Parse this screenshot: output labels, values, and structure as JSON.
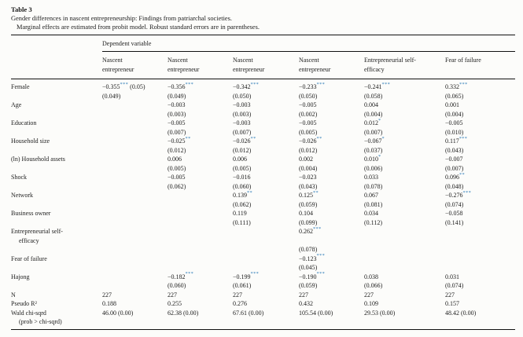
{
  "title": "Table 3",
  "caption_line1": "Gender differences in nascent entrepreneurship: Findings from patriarchal societies.",
  "caption_line2": "Marginal effects are estimated from probit model. Robust standard errors are in parentheses.",
  "colors": {
    "significance_star": "#2e7cb8",
    "rule": "#111111",
    "text": "#1c1c1c",
    "background": "#fcfcfa"
  },
  "table": {
    "dependent_variable_label": "Dependent variable",
    "column_headers": [
      [
        "Nascent",
        "entrepreneur"
      ],
      [
        "Nascent",
        "entrepreneur"
      ],
      [
        "Nascent",
        "entrepreneur"
      ],
      [
        "Nascent",
        "entrepreneur"
      ],
      [
        "Entrepreneurial self-",
        "efficacy"
      ],
      [
        "Fear of failure"
      ]
    ],
    "rows": [
      {
        "label": [
          "Female"
        ],
        "cells": [
          [
            "−0.355*** (0.05)",
            "(0.049)"
          ],
          [
            "−0.356***",
            "(0.049)"
          ],
          [
            "−0.342***",
            "(0.050)"
          ],
          [
            "−0.233***",
            "(0.050)"
          ],
          [
            "−0.241***",
            "(0.058)"
          ],
          [
            "0.332***",
            "(0.065)"
          ]
        ]
      },
      {
        "label": [
          "Age"
        ],
        "cells": [
          [],
          [
            "−0.003",
            "(0.003)"
          ],
          [
            "−0.003",
            "(0.003)"
          ],
          [
            "−0.005",
            "(0.002)"
          ],
          [
            "0.004",
            "(0.004)"
          ],
          [
            "0.001",
            "(0.004)"
          ]
        ]
      },
      {
        "label": [
          "Education"
        ],
        "cells": [
          [],
          [
            "−0.005",
            "(0.007)"
          ],
          [
            "−0.003",
            "(0.007)"
          ],
          [
            "−0.005",
            "(0.005)"
          ],
          [
            "0.012*",
            "(0.007)"
          ],
          [
            "−0.005",
            "(0.010)"
          ]
        ]
      },
      {
        "label": [
          "Household size"
        ],
        "cells": [
          [],
          [
            "−0.025**",
            "(0.012)"
          ],
          [
            "−0.026**",
            "(0.012)"
          ],
          [
            "−0.026**",
            "(0.012)"
          ],
          [
            "−0.067*",
            "(0.037)"
          ],
          [
            "0.117***",
            "(0.043)"
          ]
        ]
      },
      {
        "label": [
          "(ln) Household assets"
        ],
        "cells": [
          [],
          [
            "0.006",
            "(0.005)"
          ],
          [
            "0.006",
            "(0.005)"
          ],
          [
            "0.002",
            "(0.004)"
          ],
          [
            "0.010*",
            "(0.006)"
          ],
          [
            "−0.007",
            "(0.007)"
          ]
        ]
      },
      {
        "label": [
          "Shock"
        ],
        "cells": [
          [],
          [
            "−0.005",
            "(0.062)"
          ],
          [
            "−0.016",
            "(0.060)"
          ],
          [
            "−0.023",
            "(0.043)"
          ],
          [
            "0.033",
            "(0.078)"
          ],
          [
            "0.096**",
            "(0.048)"
          ]
        ]
      },
      {
        "label": [
          "Network"
        ],
        "cells": [
          [],
          [],
          [
            "0.139**",
            "(0.062)"
          ],
          [
            "0.125**",
            "(0.059)"
          ],
          [
            "0.067",
            "(0.081)"
          ],
          [
            "−0.276***",
            "(0.074)"
          ]
        ]
      },
      {
        "label": [
          "Business owner"
        ],
        "cells": [
          [],
          [],
          [
            "0.119",
            "(0.111)"
          ],
          [
            "0.104",
            "(0.099)"
          ],
          [
            "0.034",
            "(0.112)"
          ],
          [
            "−0.058",
            "(0.141)"
          ]
        ]
      },
      {
        "label": [
          "Entrepreneurial self-",
          "efficacy"
        ],
        "cells": [
          [],
          [],
          [],
          [
            "0.262***",
            "",
            "(0.078)"
          ],
          [],
          []
        ]
      },
      {
        "label": [
          "Fear of failure"
        ],
        "cells": [
          [],
          [],
          [],
          [
            "−0.123***",
            "(0.045)"
          ],
          [],
          []
        ]
      },
      {
        "label": [
          "Hajong"
        ],
        "cells": [
          [],
          [
            "−0.182***",
            "(0.060)"
          ],
          [
            "−0.199***",
            "(0.061)"
          ],
          [
            "−0.190***",
            "(0.059)"
          ],
          [
            "0.038",
            "(0.066)"
          ],
          [
            "0.031",
            "(0.074)"
          ]
        ]
      },
      {
        "label": [
          "N"
        ],
        "cells": [
          [
            "227"
          ],
          [
            "227"
          ],
          [
            "227"
          ],
          [
            "227"
          ],
          [
            "227"
          ],
          [
            "227"
          ]
        ]
      },
      {
        "label": [
          "Pseudo R²"
        ],
        "cells": [
          [
            "0.188"
          ],
          [
            "0.255"
          ],
          [
            "0.276"
          ],
          [
            "0.432"
          ],
          [
            "0.109"
          ],
          [
            "0.157"
          ]
        ]
      },
      {
        "label": [
          "Wald chi-sqrd",
          "(prob > chi-sqrd)"
        ],
        "cells": [
          [
            "46.00 (0.00)"
          ],
          [
            "62.38 (0.00)"
          ],
          [
            "67.61 (0.00)"
          ],
          [
            "105.54 (0.00)"
          ],
          [
            "29.53 (0.00)"
          ],
          [
            "48.42 (0.00)"
          ]
        ]
      }
    ]
  }
}
